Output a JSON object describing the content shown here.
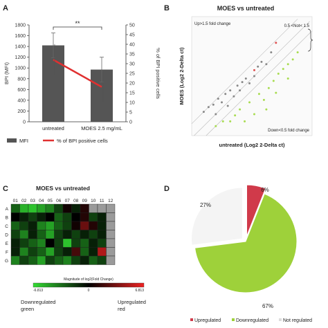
{
  "panels": {
    "a": {
      "label": "A",
      "chart_data": {
        "type": "bar",
        "categories": [
          "untreated",
          "MOES 2.5 mg/mL"
        ],
        "series": [
          {
            "name": "MFI",
            "type": "bar",
            "values": [
              1420,
              970
            ],
            "errors": [
              230,
              230
            ],
            "color": "#555555"
          },
          {
            "name": "% of BPI positive cells",
            "type": "line",
            "values": [
              32,
              18
            ],
            "errors": [
              8,
              8
            ],
            "color": "#e03030"
          }
        ],
        "ylabel": "BPI (MFI)",
        "ylabel_right": "% of BPI positive cells",
        "ylim": [
          0,
          1800
        ],
        "ylim_right": [
          0,
          50
        ],
        "yticks": [
          "0",
          "200",
          "400",
          "600",
          "800",
          "1000",
          "1200",
          "1400",
          "1600",
          "1800"
        ],
        "yticks_right": [
          "0",
          "5",
          "10",
          "15",
          "20",
          "25",
          "30",
          "35",
          "40",
          "45",
          "50"
        ],
        "significance": "**",
        "legend": [
          "MFI",
          "% of BPI positive cells"
        ]
      }
    },
    "b": {
      "label": "B",
      "chart_data": {
        "type": "scatter",
        "title": "MOES vs untreated",
        "xlabel": "untreated (Log2 2-Delta ct)",
        "ylabel": "MOES (Log2 2-Delta ct)",
        "annotations": [
          "Up>1.5 fold change",
          "0.5 <Not< 1.5",
          "Down<0.5 fold change"
        ],
        "series": [
          {
            "name": "Upregulated",
            "color": "#e05050",
            "points": [
              [
                0.7,
                0.78
              ],
              [
                0.52,
                0.55
              ]
            ]
          },
          {
            "name": "Not regulated",
            "color": "#888888",
            "points": [
              [
                0.1,
                0.2
              ],
              [
                0.14,
                0.24
              ],
              [
                0.18,
                0.26
              ],
              [
                0.22,
                0.31
              ],
              [
                0.25,
                0.28
              ],
              [
                0.28,
                0.35
              ],
              [
                0.32,
                0.38
              ],
              [
                0.35,
                0.33
              ],
              [
                0.38,
                0.42
              ],
              [
                0.42,
                0.45
              ],
              [
                0.45,
                0.48
              ],
              [
                0.48,
                0.44
              ],
              [
                0.52,
                0.5
              ],
              [
                0.55,
                0.58
              ],
              [
                0.58,
                0.62
              ],
              [
                0.62,
                0.6
              ],
              [
                0.66,
                0.7
              ],
              [
                0.2,
                0.18
              ],
              [
                0.3,
                0.25
              ],
              [
                0.4,
                0.38
              ]
            ]
          },
          {
            "name": "Downregulated",
            "color": "#a8dc50",
            "points": [
              [
                0.2,
                0.08
              ],
              [
                0.26,
                0.12
              ],
              [
                0.32,
                0.12
              ],
              [
                0.36,
                0.17
              ],
              [
                0.4,
                0.22
              ],
              [
                0.44,
                0.12
              ],
              [
                0.48,
                0.28
              ],
              [
                0.52,
                0.18
              ],
              [
                0.56,
                0.35
              ],
              [
                0.6,
                0.3
              ],
              [
                0.64,
                0.4
              ],
              [
                0.68,
                0.46
              ],
              [
                0.72,
                0.52
              ],
              [
                0.76,
                0.56
              ],
              [
                0.8,
                0.6
              ],
              [
                0.84,
                0.64
              ],
              [
                0.8,
                0.48
              ],
              [
                0.7,
                0.36
              ],
              [
                0.62,
                0.22
              ],
              [
                0.88,
                0.7
              ]
            ]
          }
        ]
      }
    },
    "c": {
      "label": "C",
      "chart_data": {
        "type": "heatmap",
        "title": "MOES vs untreated",
        "columns": [
          "01",
          "02",
          "03",
          "04",
          "05",
          "06",
          "07",
          "08",
          "09",
          "10",
          "11",
          "12"
        ],
        "rows": [
          "A",
          "B",
          "C",
          "D",
          "E",
          "F",
          "G"
        ],
        "values": [
          [
            -3.0,
            -5.5,
            -6.0,
            -5.0,
            -4.0,
            -2.0,
            0.5,
            -1.0,
            1.0,
            0.0,
            -2.0,
            -2.5
          ],
          [
            0.0,
            -1.0,
            -2.0,
            -1.0,
            0.0,
            -3.0,
            -2.0,
            0.0,
            1.0,
            -2.0,
            -1.0,
            -1.5
          ],
          [
            -3.0,
            -2.0,
            -1.0,
            -4.0,
            -5.0,
            -3.0,
            -2.0,
            0.5,
            3.0,
            1.0,
            -1.0,
            -2.0
          ],
          [
            -2.0,
            -4.0,
            -1.0,
            -3.0,
            -5.0,
            -2.0,
            -1.0,
            -2.0,
            -1.0,
            -2.0,
            -1.0,
            -2.0
          ],
          [
            -1.0,
            -2.0,
            -3.0,
            -4.0,
            0.0,
            -2.0,
            -6.0,
            -2.0,
            -3.0,
            -1.0,
            -2.0,
            -1.0
          ],
          [
            -1.0,
            -4.0,
            -2.0,
            -3.0,
            -5.0,
            -2.0,
            -1.0,
            2.0,
            -3.0,
            -1.0,
            5.0,
            -1.0
          ],
          [
            -4.0,
            -2.0,
            -3.0,
            -5.0,
            -2.0,
            -3.0,
            -4.0,
            -2.0,
            -1.0,
            -3.0,
            -2.0,
            -1.0
          ]
        ],
        "gray_cells": [
          [
            0,
            9
          ],
          [
            0,
            10
          ],
          [
            0,
            11
          ],
          [
            1,
            11
          ],
          [
            2,
            11
          ],
          [
            3,
            11
          ],
          [
            4,
            11
          ],
          [
            5,
            11
          ],
          [
            6,
            11
          ]
        ],
        "colorbar": {
          "title": "Magnitude of log2(Fold Change)",
          "min_label": "-6.813",
          "mid_label": "0",
          "max_label": "6.813",
          "min": -6.813,
          "max": 6.813,
          "low_color": "#33dd33",
          "mid_color": "#000000",
          "high_color": "#ee2222"
        },
        "captions": {
          "low_line1": "Downregulated",
          "low_line2": "green",
          "high_line1": "Upregulated",
          "high_line2": "red"
        }
      }
    },
    "d": {
      "label": "D",
      "chart_data": {
        "type": "pie",
        "categories": [
          "Upregulated",
          "Downregulated",
          "Not regulated"
        ],
        "values": [
          6,
          67,
          27
        ],
        "value_labels": [
          "6%",
          "67%",
          "27%"
        ],
        "colors": [
          "#d03a4a",
          "#9ed13a",
          "#f4f4f4"
        ],
        "legend_placement": "bottom"
      }
    }
  }
}
